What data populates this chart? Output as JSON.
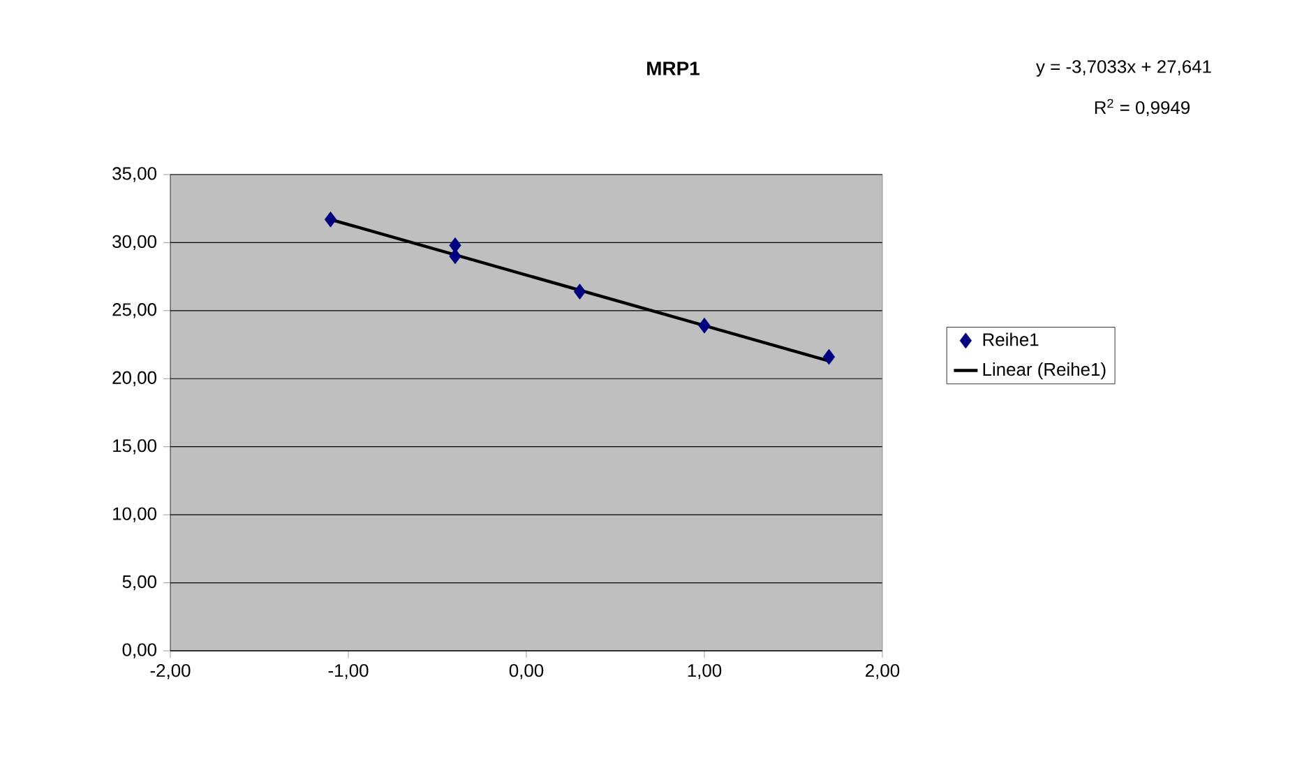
{
  "chart_data": {
    "type": "scatter",
    "title": "MRP1",
    "annotations": [
      "y = -3,7033x + 27,641",
      "R$^{2}$ = 0,9949"
    ],
    "series": [
      {
        "name": "Reihe1",
        "marker": "diamond",
        "color": "#000080",
        "x": [
          -1.1,
          -0.4,
          -0.4,
          0.3,
          1.0,
          1.7
        ],
        "values": [
          31.7,
          29.8,
          29.0,
          26.4,
          23.9,
          21.6
        ]
      },
      {
        "name": "Linear (Reihe1)",
        "type": "line",
        "marker": "none",
        "color": "#000000",
        "x": [
          -1.1,
          1.7
        ],
        "values": [
          31.7,
          21.3
        ]
      }
    ],
    "xlim": [
      -2,
      2
    ],
    "ylim": [
      0,
      35
    ],
    "xticks": [
      {
        "value": -2,
        "label": "-2,00"
      },
      {
        "value": -1,
        "label": "-1,00"
      },
      {
        "value": 0,
        "label": "0,00"
      },
      {
        "value": 1,
        "label": "1,00"
      },
      {
        "value": 2,
        "label": "2,00"
      }
    ],
    "yticks": [
      {
        "value": 0,
        "label": "0,00"
      },
      {
        "value": 5,
        "label": "5,00"
      },
      {
        "value": 10,
        "label": "10,00"
      },
      {
        "value": 15,
        "label": "15,00"
      },
      {
        "value": 20,
        "label": "20,00"
      },
      {
        "value": 25,
        "label": "25,00"
      },
      {
        "value": 30,
        "label": "30,00"
      },
      {
        "value": 35,
        "label": "35,00"
      }
    ],
    "grid": "y",
    "legend": "right"
  }
}
